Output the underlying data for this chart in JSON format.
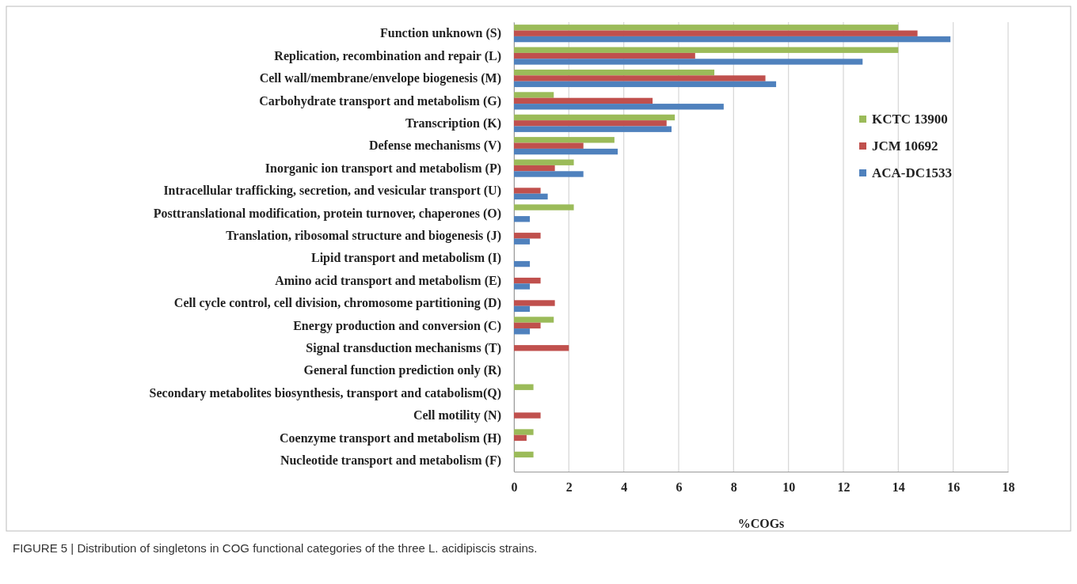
{
  "chart_data": {
    "type": "bar",
    "orientation": "horizontal",
    "xlabel": "%COGs",
    "categories": [
      "Function unknown  (S)",
      "Replication, recombination and repair (L)",
      "Cell wall/membrane/envelope biogenesis (M)",
      "Carbohydrate transport and metabolism (G)",
      "Transcription (K)",
      "Defense mechanisms (V)",
      "Inorganic ion transport and metabolism (P)",
      "Intracellular trafficking, secretion, and vesicular transport (U)",
      "Posttranslational modification, protein turnover, chaperones (O)",
      "Translation, ribosomal structure  and biogenesis (J)",
      "Lipid transport and metabolism (I)",
      "Amino acid transport and metabolism (E)",
      "Cell cycle control, cell division, chromosome partitioning (D)",
      "Energy production and conversion (C)",
      "Signal transduction mechanisms (T)",
      "General function prediction only (R)",
      "Secondary metabolites biosynthesis, transport and catabolism(Q)",
      "Cell motility (N)",
      "Coenzyme transport and metabolism (H)",
      "Nucleotide transport and metabolism (F)"
    ],
    "series": [
      {
        "name": "KCTC 13900",
        "color": "#9bbb59",
        "values": [
          14.0,
          14.0,
          7.3,
          1.45,
          5.86,
          3.66,
          2.18,
          0,
          2.18,
          0,
          0,
          0,
          0,
          1.45,
          0,
          0,
          0.71,
          0,
          0.71,
          0.71
        ]
      },
      {
        "name": "JCM 10692",
        "color": "#c0504d",
        "values": [
          14.7,
          6.6,
          9.16,
          5.05,
          5.56,
          2.53,
          1.49,
          0.97,
          0,
          0.97,
          0,
          0.97,
          1.49,
          0.97,
          2.0,
          0,
          0,
          0.97,
          0.46,
          0
        ]
      },
      {
        "name": "ACA-DC1533",
        "color": "#4f81bd",
        "values": [
          15.9,
          12.7,
          9.55,
          7.64,
          5.74,
          3.78,
          2.53,
          1.23,
          0.58,
          0.58,
          0.58,
          0.58,
          0.58,
          0.58,
          0,
          0,
          0,
          0,
          0,
          0
        ]
      }
    ],
    "xlim": [
      0,
      18
    ],
    "xticks": [
      0,
      2,
      4,
      6,
      8,
      10,
      12,
      14,
      16,
      18
    ],
    "grid": "x",
    "legend": "right",
    "annotations": [
      "FIGURE 5 | Distribution of singletons in COG functional categories of the three L. acidipiscis strains."
    ]
  }
}
